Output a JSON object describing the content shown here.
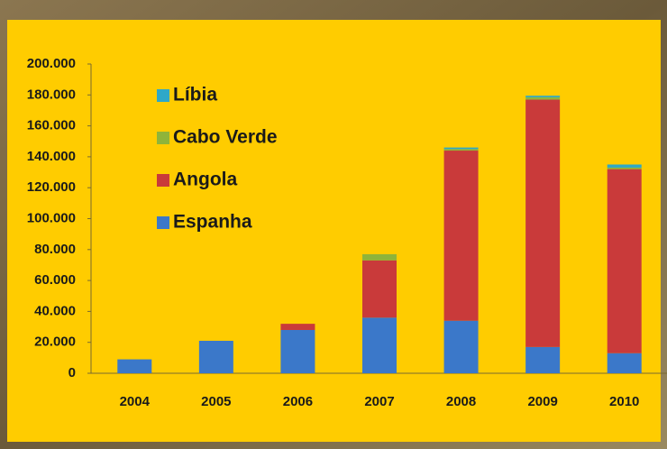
{
  "chart_data": {
    "type": "stacked-bar",
    "categories": [
      "2004",
      "2005",
      "2006",
      "2007",
      "2008",
      "2009",
      "2010"
    ],
    "series": [
      {
        "name": "Espanha",
        "color": "#3b78c9",
        "values": [
          9000,
          21000,
          28000,
          36000,
          34000,
          17000,
          13000
        ]
      },
      {
        "name": "Angola",
        "color": "#c93a3a",
        "values": [
          0,
          0,
          4000,
          37000,
          110000,
          160000,
          119000
        ]
      },
      {
        "name": "Cabo Verde",
        "color": "#8fb43a",
        "values": [
          0,
          0,
          0,
          4000,
          1000,
          1500,
          1000
        ]
      },
      {
        "name": "Líbia",
        "color": "#2ea8c8",
        "values": [
          0,
          0,
          0,
          0,
          1000,
          1000,
          2000
        ]
      }
    ],
    "ylim": [
      0,
      200000
    ],
    "yticks": [
      0,
      {
        "value": 20000,
        "label": "20.000"
      },
      {
        "value": 40000,
        "label": "40.000"
      },
      {
        "value": 60000,
        "label": "60.000"
      },
      {
        "value": 80000,
        "label": "80.000"
      },
      {
        "value": 100000,
        "label": "100.000"
      },
      {
        "value": 120000,
        "label": "120.000"
      },
      {
        "value": 140000,
        "label": "140.000"
      },
      {
        "value": 160000,
        "label": "160.000"
      },
      {
        "value": 180000,
        "label": "180.000"
      },
      {
        "value": 200000,
        "label": "200.000"
      }
    ],
    "legend_position": "upper left"
  }
}
